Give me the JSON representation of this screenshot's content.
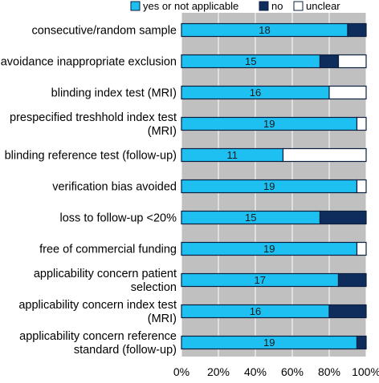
{
  "chart_data": {
    "type": "bar",
    "orientation": "horizontal",
    "stacked": true,
    "title": "",
    "xlabel": "",
    "ylabel": "",
    "xlim": [
      0,
      100
    ],
    "x_ticks": [
      "0%",
      "20%",
      "40%",
      "60%",
      "80%",
      "100%"
    ],
    "grid": "vertical",
    "legend_position": "top-right",
    "categories": [
      [
        "consecutive/random sample"
      ],
      [
        "avoidance inappropriate exclusion"
      ],
      [
        "blinding index test (MRI)"
      ],
      [
        "prespecified treshhold index test",
        "(MRI)"
      ],
      [
        "blinding reference test (follow-up)"
      ],
      [
        "verification bias avoided"
      ],
      [
        "loss to follow-up <20%"
      ],
      [
        "free of commercial funding"
      ],
      [
        "applicability concern patient",
        "selection"
      ],
      [
        "applicability concern index test",
        "(MRI)"
      ],
      [
        "applicability concern reference",
        "standard (follow-up)"
      ]
    ],
    "series": [
      {
        "name": "yes or not applicable",
        "color": "#1ec0f2",
        "values": [
          90,
          75,
          80,
          95,
          55,
          95,
          75,
          95,
          85,
          80,
          95
        ]
      },
      {
        "name": "no",
        "color": "#0e2d5c",
        "values": [
          10,
          10,
          0,
          0,
          0,
          0,
          25,
          0,
          15,
          20,
          5
        ]
      },
      {
        "name": "unclear",
        "color": "#ffffff",
        "values": [
          0,
          15,
          20,
          5,
          45,
          5,
          0,
          5,
          0,
          0,
          0
        ]
      }
    ],
    "bar_labels": [
      "18",
      "15",
      "16",
      "19",
      "11",
      "19",
      "15",
      "19",
      "17",
      "16",
      "19"
    ]
  }
}
